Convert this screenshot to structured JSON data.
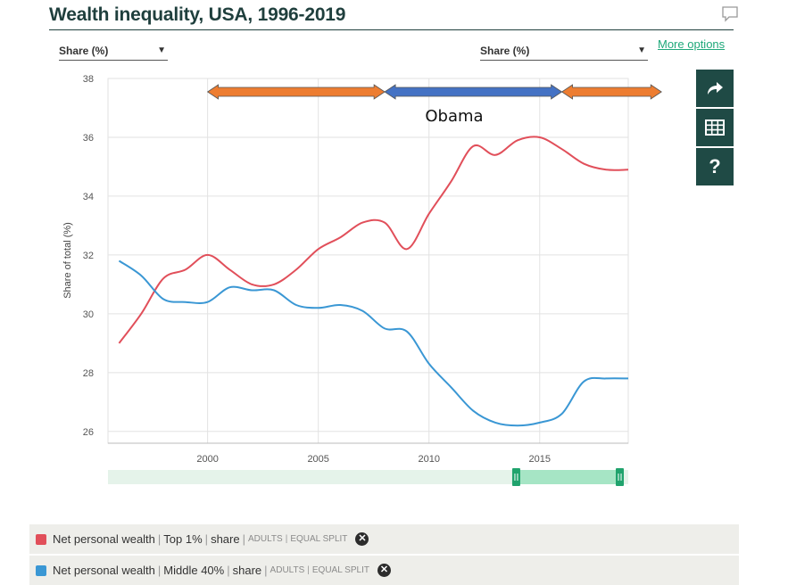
{
  "header": {
    "title": "Wealth inequality, USA, 1996-2019",
    "more_options": "More options"
  },
  "controls": {
    "left_select": "Share (%)",
    "right_select": "Share (%)"
  },
  "sidebar": {
    "share_icon": "share-arrow-icon",
    "table_icon": "table-icon",
    "help_label": "?"
  },
  "annotation": {
    "label": "Obama",
    "arrows": [
      {
        "from": 2000,
        "to": 2008,
        "color": "#ed7d31"
      },
      {
        "from": 2008,
        "to": 2016,
        "color": "#4472c4"
      },
      {
        "from": 2016,
        "to": 2020.5,
        "color": "#ed7d31"
      }
    ]
  },
  "chart_data": {
    "type": "line",
    "title": "Wealth inequality, USA, 1996-2019",
    "xlabel": "",
    "ylabel": "Share of total (%)",
    "xlim": [
      1995.5,
      2019
    ],
    "ylim": [
      25.6,
      38
    ],
    "xticks": [
      2000,
      2005,
      2010,
      2015
    ],
    "yticks": [
      26,
      28,
      30,
      32,
      34,
      36,
      38
    ],
    "grid": true,
    "x": [
      1996,
      1997,
      1998,
      1999,
      2000,
      2001,
      2002,
      2003,
      2004,
      2005,
      2006,
      2007,
      2008,
      2009,
      2010,
      2011,
      2012,
      2013,
      2014,
      2015,
      2016,
      2017,
      2018,
      2019
    ],
    "series": [
      {
        "name": "Net personal wealth | Top 1% | share",
        "color": "#e14f5a",
        "values": [
          29.0,
          30.0,
          31.2,
          31.5,
          32.0,
          31.5,
          31.0,
          31.0,
          31.5,
          32.2,
          32.6,
          33.1,
          33.1,
          32.2,
          33.4,
          34.5,
          35.7,
          35.4,
          35.9,
          36.0,
          35.6,
          35.1,
          34.9,
          34.9
        ]
      },
      {
        "name": "Net personal wealth | Middle 40% | share",
        "color": "#3a97d4",
        "values": [
          31.8,
          31.3,
          30.5,
          30.4,
          30.4,
          30.9,
          30.8,
          30.8,
          30.3,
          30.2,
          30.3,
          30.1,
          29.5,
          29.4,
          28.3,
          27.5,
          26.7,
          26.3,
          26.2,
          26.3,
          26.6,
          27.7,
          27.8,
          27.8
        ]
      }
    ],
    "legend_placement": "bottom"
  },
  "legend": [
    {
      "main": "Net personal wealth",
      "bracket": "Top 1%",
      "measure": "share",
      "qual1": "ADULTS",
      "qual2": "EQUAL SPLIT",
      "color": "#e14f5a"
    },
    {
      "main": "Net personal wealth",
      "bracket": "Middle 40%",
      "measure": "share",
      "qual1": "ADULTS",
      "qual2": "EQUAL SPLIT",
      "color": "#3a97d4"
    }
  ],
  "range_slider": {
    "selected_from": 2014,
    "selected_to": 2019
  }
}
